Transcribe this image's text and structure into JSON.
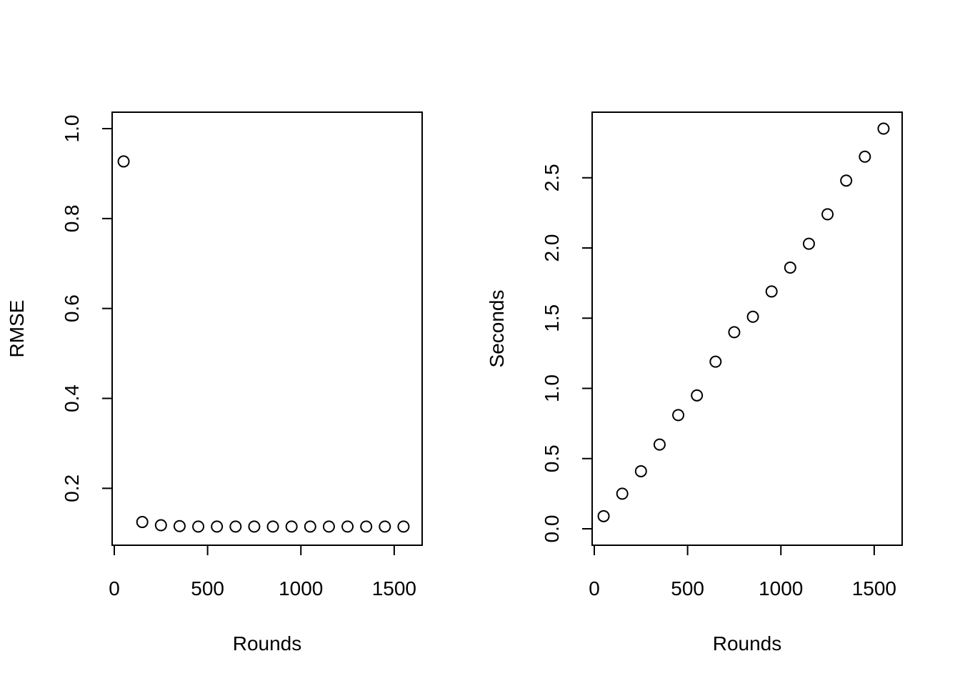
{
  "chart_data": [
    {
      "type": "scatter",
      "title": "",
      "xlabel": "Rounds",
      "ylabel": "RMSE",
      "xlim": [
        0,
        1600
      ],
      "ylim": [
        0.11,
        1.0
      ],
      "xticks": [
        0,
        500,
        1000,
        1500
      ],
      "xtick_labels": [
        "0",
        "500",
        "1000",
        "1500"
      ],
      "yticks": [
        0.2,
        0.4,
        0.6,
        0.8,
        1.0
      ],
      "ytick_labels": [
        "0.2",
        "0.4",
        "0.6",
        "0.8",
        "1.0"
      ],
      "grid": false,
      "marker": "open-circle",
      "x": [
        50,
        150,
        250,
        350,
        450,
        550,
        650,
        750,
        850,
        950,
        1050,
        1150,
        1250,
        1350,
        1450,
        1550
      ],
      "y": [
        0.927,
        0.125,
        0.118,
        0.116,
        0.115,
        0.115,
        0.115,
        0.115,
        0.115,
        0.115,
        0.115,
        0.115,
        0.115,
        0.115,
        0.115,
        0.115
      ]
    },
    {
      "type": "scatter",
      "title": "",
      "xlabel": "Rounds",
      "ylabel": "Seconds",
      "xlim": [
        0,
        1600
      ],
      "ylim": [
        0,
        2.85
      ],
      "xticks": [
        0,
        500,
        1000,
        1500
      ],
      "xtick_labels": [
        "0",
        "500",
        "1000",
        "1500"
      ],
      "yticks": [
        0,
        0.5,
        1.0,
        1.5,
        2.0,
        2.5
      ],
      "ytick_labels": [
        "0.0",
        "0.5",
        "1.0",
        "1.5",
        "2.0",
        "2.5"
      ],
      "grid": false,
      "marker": "open-circle",
      "x": [
        50,
        150,
        250,
        350,
        450,
        550,
        650,
        750,
        850,
        950,
        1050,
        1150,
        1250,
        1350,
        1450,
        1550
      ],
      "y": [
        0.09,
        0.25,
        0.41,
        0.6,
        0.81,
        0.95,
        1.19,
        1.4,
        1.51,
        1.69,
        1.86,
        2.03,
        2.24,
        2.48,
        2.65,
        2.85
      ]
    }
  ]
}
